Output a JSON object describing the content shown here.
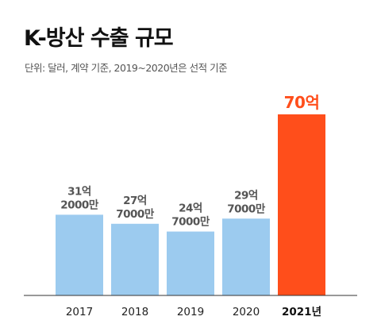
{
  "header": {
    "title": "K-방산 수출 규모",
    "subtitle": "단위: 달러, 계약 기준, 2019~2020년은 선적 기준"
  },
  "colors": {
    "bar": "#9ccbef",
    "highlight": "#ff4e1b",
    "axis": "#333333",
    "label": "#555555"
  },
  "chart_data": {
    "type": "bar",
    "title": "K-방산 수출 규모",
    "subtitle": "단위: 달러, 계약 기준, 2019~2020년은 선적 기준",
    "categories": [
      "2017",
      "2018",
      "2019",
      "2020",
      "2021년"
    ],
    "values": [
      31.2,
      27.7,
      24.7,
      29.7,
      70
    ],
    "value_labels": [
      [
        "31억",
        "2000만"
      ],
      [
        "27억",
        "7000만"
      ],
      [
        "24억",
        "7000만"
      ],
      [
        "29억",
        "7000만"
      ],
      [
        "70억"
      ]
    ],
    "highlight_index": 4,
    "unit": "억 달러",
    "ylim": [
      0,
      70
    ],
    "grid": false,
    "legend": "none",
    "xlabel": "",
    "ylabel": ""
  }
}
